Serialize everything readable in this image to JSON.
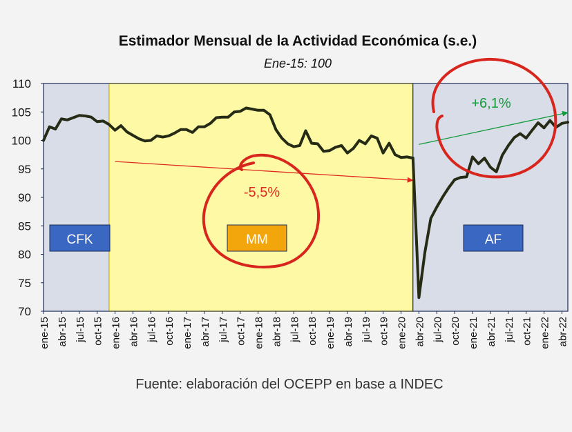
{
  "title": "Estimador Mensual de la Actividad Económica (s.e.)",
  "subtitle": "Ene-15: 100",
  "source": "Fuente: elaboración del OCEPP en base a INDEC",
  "chart_data": {
    "type": "line",
    "title": "Estimador Mensual de la Actividad Económica (s.e.)",
    "subtitle": "Ene-15: 100",
    "ylim": [
      70,
      110
    ],
    "yticks": [
      70,
      75,
      80,
      85,
      90,
      95,
      100,
      105,
      110
    ],
    "xlim_months": [
      "ene-15",
      "may-22"
    ],
    "xticks": [
      "ene-15",
      "abr-15",
      "jul-15",
      "oct-15",
      "ene-16",
      "abr-16",
      "jul-16",
      "oct-16",
      "ene-17",
      "abr-17",
      "jul-17",
      "oct-17",
      "ene-18",
      "abr-18",
      "jul-18",
      "oct-18",
      "ene-19",
      "abr-19",
      "jul-19",
      "oct-19",
      "ene-20",
      "abr-20",
      "jul-20",
      "oct-20",
      "ene-21",
      "abr-21",
      "jul-21",
      "oct-21",
      "ene-22",
      "abr-22"
    ],
    "grid": false,
    "line_color": "#262b16",
    "series": [
      {
        "values": [
          100.0,
          102.4,
          102.0,
          103.8,
          103.6,
          104.0,
          104.4,
          104.3,
          104.1,
          103.3,
          103.4,
          102.8,
          101.8,
          102.6,
          101.5,
          100.9,
          100.3,
          99.9,
          100.0,
          100.8,
          100.6,
          100.8,
          101.3,
          101.9,
          101.9,
          101.4,
          102.4,
          102.4,
          103.0,
          104.0,
          104.1,
          104.1,
          105.0,
          105.1,
          105.7,
          105.5,
          105.3,
          105.3,
          104.5,
          101.9,
          100.4,
          99.4,
          98.9,
          99.1,
          101.7,
          99.5,
          99.4,
          98.1,
          98.2,
          98.8,
          99.1,
          97.8,
          98.6,
          100.0,
          99.4,
          100.8,
          100.4,
          97.8,
          99.5,
          97.5,
          97.0,
          97.1,
          96.9,
          72.4,
          80.3,
          86.3,
          88.3,
          90.1,
          91.7,
          93.1,
          93.5,
          93.6,
          97.1,
          95.9,
          96.9,
          95.3,
          94.5,
          97.4,
          99.1,
          100.5,
          101.2,
          100.4,
          101.8,
          103.1,
          102.2,
          103.5,
          102.3,
          103.0,
          103.2
        ]
      }
    ],
    "periods": [
      {
        "label": "CFK",
        "start": "ene-15",
        "end": "dic-15",
        "background": "#d9dde8",
        "label_background": "#3a67c2",
        "label_color": "#ffffff"
      },
      {
        "label": "MM",
        "start": "dic-15",
        "end": "mar-20",
        "background": "#fdf9a4",
        "label_background": "#f2a60c",
        "label_color": "#ffffff"
      },
      {
        "label": "AF",
        "start": "mar-20",
        "end": "may-22",
        "background": "#d9dde8",
        "label_background": "#3a67c2",
        "label_color": "#ffffff"
      }
    ],
    "annotations": [
      {
        "text": "-5,5%",
        "color": "#e02b22",
        "arrow_from": [
          "ene-16",
          96.3
        ],
        "arrow_to": [
          "mar-20",
          93.0
        ]
      },
      {
        "text": "+6,1%",
        "color": "#139a3b",
        "arrow_from": [
          "abr-20",
          99.3
        ],
        "arrow_to": [
          "may-22",
          104.9
        ]
      }
    ]
  }
}
